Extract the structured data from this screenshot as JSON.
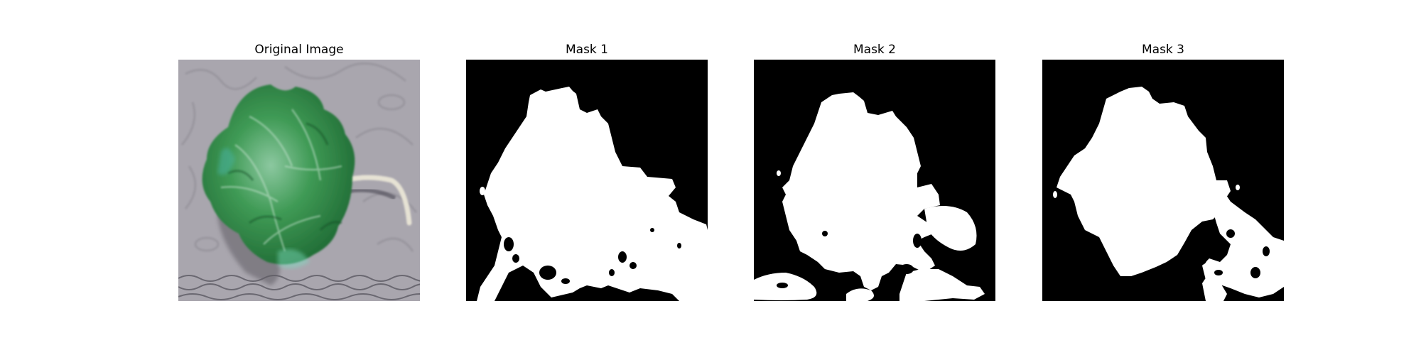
{
  "figure": {
    "panels": [
      {
        "title": "Original Image",
        "kind": "photo",
        "subject": "lettuce-leaf"
      },
      {
        "title": "Mask 1",
        "kind": "mask"
      },
      {
        "title": "Mask 2",
        "kind": "mask"
      },
      {
        "title": "Mask 3",
        "kind": "mask"
      }
    ],
    "colors": {
      "background": "#ffffff",
      "mask_fg": "#ffffff",
      "mask_bg": "#000000",
      "leaf_dark": "#1f6a34",
      "leaf_mid": "#3f9a55",
      "leaf_light": "#8cc8a0",
      "surface": "#a9a6ae"
    }
  }
}
